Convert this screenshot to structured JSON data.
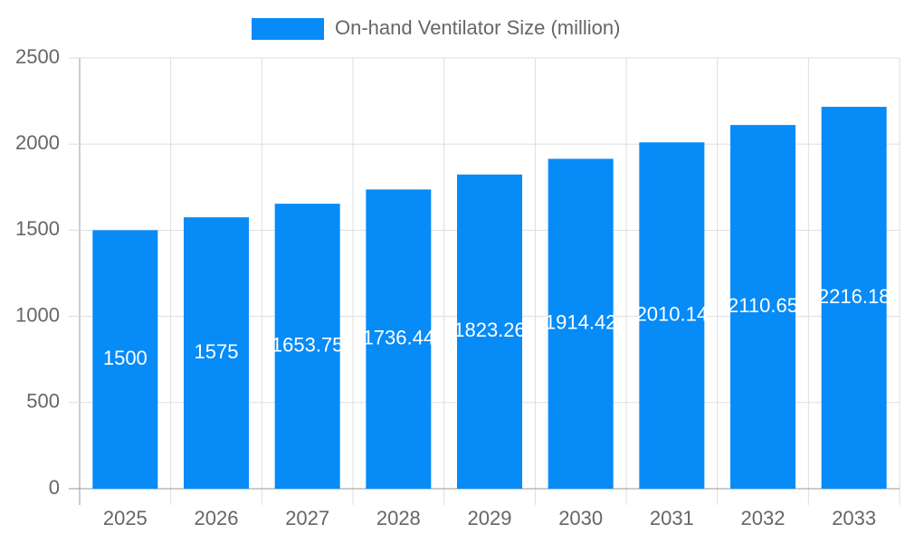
{
  "chart_data": {
    "type": "bar",
    "categories": [
      "2025",
      "2026",
      "2027",
      "2028",
      "2029",
      "2030",
      "2031",
      "2032",
      "2033"
    ],
    "series": [
      {
        "name": "On-hand Ventilator Size (million)",
        "color": "#078bf7",
        "values": [
          1500,
          1575,
          1653.75,
          1736.44,
          1823.26,
          1914.42,
          2010.14,
          2110.65,
          2216.18
        ]
      }
    ],
    "ylim": [
      0,
      2500
    ],
    "yticks": [
      0,
      500,
      1000,
      1500,
      2000,
      2500
    ],
    "grid": true,
    "legend": "top"
  }
}
